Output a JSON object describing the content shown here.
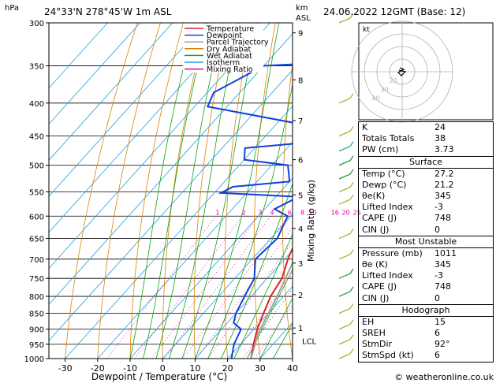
{
  "header": {
    "location": "24°33'N  278°45'W  1m  ASL",
    "datetime": "24.06.2022  12GMT  (Base: 12)",
    "hpa_label": "hPa",
    "km_label": "km",
    "asl_label": "ASL"
  },
  "legend": [
    {
      "label": "Temperature",
      "color": "#e02020"
    },
    {
      "label": "Dewpoint",
      "color": "#1040e0"
    },
    {
      "label": "Parcel Trajectory",
      "color": "#a0a0a0"
    },
    {
      "label": "Dry Adiabat",
      "color": "#e08000"
    },
    {
      "label": "Wet Adiabat",
      "color": "#10a010"
    },
    {
      "label": "Isotherm",
      "color": "#20a0e0"
    },
    {
      "label": "Mixing Ratio",
      "color": "#e000a0"
    }
  ],
  "chart_data": {
    "type": "line",
    "xlabel": "Dewpoint / Temperature (°C)",
    "ylabel_right": "Mixing Ratio (g/kg)",
    "xlim": [
      -35,
      40
    ],
    "ylim_hpa": [
      1000,
      300
    ],
    "pressure_ticks": [
      300,
      350,
      400,
      450,
      500,
      550,
      600,
      650,
      700,
      750,
      800,
      850,
      900,
      950,
      1000
    ],
    "temperature_ticks": [
      -30,
      -20,
      -10,
      0,
      10,
      20,
      30,
      40
    ],
    "km_ticks": [
      {
        "label": "9",
        "p": 311
      },
      {
        "label": "8",
        "p": 368
      },
      {
        "label": "7",
        "p": 426
      },
      {
        "label": "6",
        "p": 490
      },
      {
        "label": "5",
        "p": 556
      },
      {
        "label": "4",
        "p": 627
      },
      {
        "label": "3",
        "p": 710
      },
      {
        "label": "2",
        "p": 795
      },
      {
        "label": "1",
        "p": 896
      }
    ],
    "lcl": {
      "label": "LCL",
      "p": 915
    },
    "mixing_ratio_labels": [
      "1",
      "2",
      "3",
      "4",
      "6",
      "8",
      "10",
      "16",
      "20",
      "25"
    ],
    "series": [
      {
        "name": "Temperature",
        "points": [
          [
            1000,
            27.2
          ],
          [
            950,
            24
          ],
          [
            900,
            21
          ],
          [
            850,
            18.5
          ],
          [
            800,
            16
          ],
          [
            750,
            14.5
          ],
          [
            700,
            11
          ],
          [
            650,
            8
          ],
          [
            600,
            5
          ],
          [
            550,
            1.5
          ],
          [
            500,
            -4
          ],
          [
            450,
            -9
          ],
          [
            400,
            -16
          ],
          [
            350,
            -24
          ],
          [
            300,
            -32
          ]
        ]
      },
      {
        "name": "Dewpoint",
        "points": [
          [
            1000,
            21.2
          ],
          [
            950,
            18
          ],
          [
            900,
            16
          ],
          [
            880,
            12
          ],
          [
            850,
            10
          ],
          [
            800,
            8
          ],
          [
            750,
            6
          ],
          [
            700,
            1
          ],
          [
            650,
            2
          ],
          [
            600,
            -1
          ],
          [
            585,
            -7
          ],
          [
            560,
            -3
          ],
          [
            552,
            -28
          ],
          [
            540,
            -26
          ],
          [
            530,
            -10
          ],
          [
            500,
            -15
          ],
          [
            490,
            -30
          ],
          [
            470,
            -33
          ],
          [
            460,
            -14
          ],
          [
            440,
            -12
          ],
          [
            405,
            -56
          ],
          [
            385,
            -58
          ],
          [
            350,
            -50
          ],
          [
            345,
            -27
          ],
          [
            340,
            -36
          ],
          [
            330,
            -32
          ],
          [
            310,
            -28
          ],
          [
            300,
            -28
          ]
        ]
      },
      {
        "name": "Parcel Trajectory",
        "points": [
          [
            1000,
            27.2
          ],
          [
            950,
            24.5
          ],
          [
            915,
            22.5
          ],
          [
            850,
            20
          ],
          [
            800,
            18
          ],
          [
            700,
            13
          ],
          [
            600,
            7
          ],
          [
            500,
            -1
          ],
          [
            400,
            -11
          ],
          [
            300,
            -26
          ]
        ]
      }
    ]
  },
  "hodograph": {
    "label": "kt",
    "ring_labels": [
      "40",
      "30",
      "20"
    ]
  },
  "indices": {
    "rows": [
      {
        "key": "K",
        "value": "24"
      },
      {
        "key": "Totals Totals",
        "value": "38"
      },
      {
        "key": "PW (cm)",
        "value": "3.73"
      }
    ],
    "surface": {
      "title": "Surface",
      "rows": [
        {
          "key": "Temp (°C)",
          "value": "27.2"
        },
        {
          "key": "Dewp (°C)",
          "value": "21.2"
        },
        {
          "key": "θe(K)",
          "value": "345"
        },
        {
          "key": "Lifted Index",
          "value": "-3"
        },
        {
          "key": "CAPE (J)",
          "value": "748"
        },
        {
          "key": "CIN (J)",
          "value": "0"
        }
      ]
    },
    "most_unstable": {
      "title": "Most Unstable",
      "rows": [
        {
          "key": "Pressure (mb)",
          "value": "1011"
        },
        {
          "key": "θe (K)",
          "value": "345"
        },
        {
          "key": "Lifted Index",
          "value": "-3"
        },
        {
          "key": "CAPE (J)",
          "value": "748"
        },
        {
          "key": "CIN (J)",
          "value": "0"
        }
      ]
    },
    "hodograph_table": {
      "title": "Hodograph",
      "rows": [
        {
          "key": "EH",
          "value": "15"
        },
        {
          "key": "SREH",
          "value": "6"
        },
        {
          "key": "StmDir",
          "value": "92°"
        },
        {
          "key": "StmSpd (kt)",
          "value": "6"
        }
      ]
    }
  },
  "footer": {
    "copyright": "© weatheronline.co.uk"
  }
}
